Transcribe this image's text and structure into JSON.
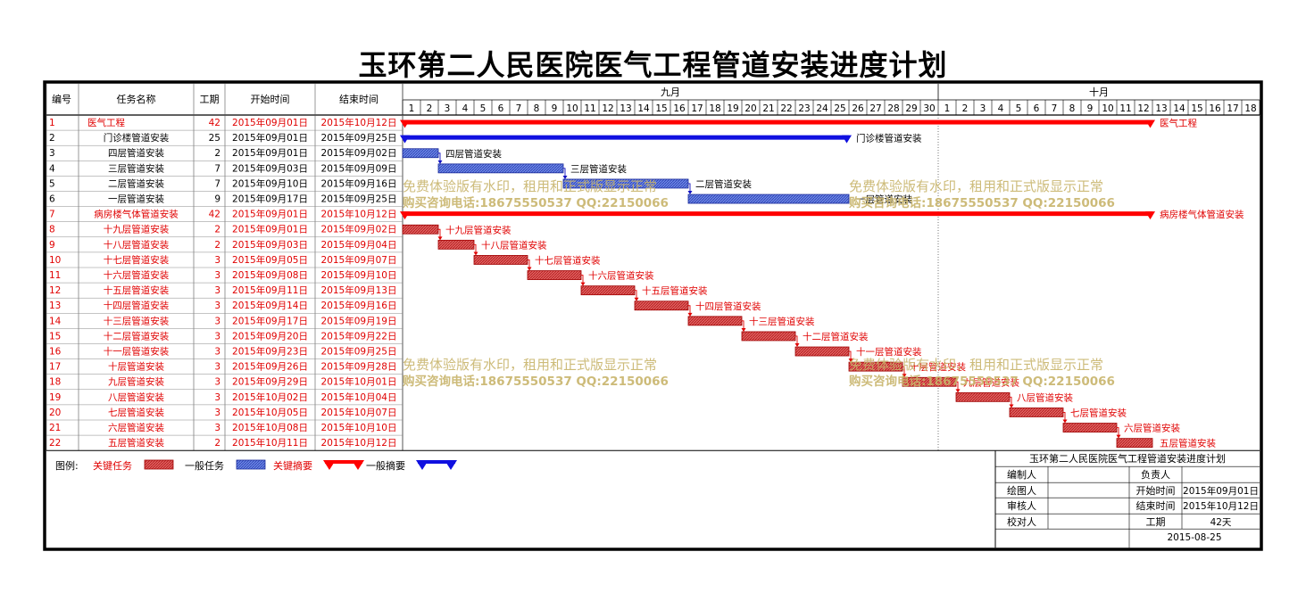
{
  "title": "玉环第二人民医院医气工程管道安装进度计划",
  "headers": {
    "id": "编号",
    "name": "任务名称",
    "dur": "工期",
    "start": "开始时间",
    "end": "结束时间"
  },
  "months": [
    "九月",
    "十月"
  ],
  "days": [
    "1",
    "2",
    "3",
    "4",
    "5",
    "6",
    "7",
    "8",
    "9",
    "10",
    "11",
    "12",
    "13",
    "14",
    "15",
    "16",
    "17",
    "18",
    "19",
    "20",
    "21",
    "22",
    "23",
    "24",
    "25",
    "26",
    "27",
    "28",
    "29",
    "30",
    "1",
    "2",
    "3",
    "4",
    "5",
    "6",
    "7",
    "8",
    "9",
    "10",
    "11",
    "12",
    "13",
    "14",
    "15",
    "16",
    "17",
    "18"
  ],
  "timeline": {
    "start": "2015-09-01",
    "day_count": 48,
    "divider_date": "2015-10-01"
  },
  "colors": {
    "critical": "#ff0000",
    "normal": "#1010e0",
    "critical_bar": "#d83a3a",
    "normal_bar": "#4a6ad8",
    "watermark": "#c8b46a"
  },
  "tasks": [
    {
      "id": "1",
      "name": "医气工程",
      "dur": "42",
      "start": "2015年09月01日",
      "end": "2015年10月12日",
      "s": "2015-09-01",
      "e": "2015-10-12",
      "kind": "summary",
      "critical": true,
      "label": "医气工程"
    },
    {
      "id": "2",
      "name": "门诊楼管道安装",
      "dur": "25",
      "start": "2015年09月01日",
      "end": "2015年09月25日",
      "s": "2015-09-01",
      "e": "2015-09-25",
      "kind": "summary",
      "critical": false,
      "label": "门诊楼管道安装"
    },
    {
      "id": "3",
      "name": "四层管道安装",
      "dur": "2",
      "start": "2015年09月01日",
      "end": "2015年09月02日",
      "s": "2015-09-01",
      "e": "2015-09-02",
      "kind": "task",
      "critical": false,
      "label": "四层管道安装"
    },
    {
      "id": "4",
      "name": "三层管道安装",
      "dur": "7",
      "start": "2015年09月03日",
      "end": "2015年09月09日",
      "s": "2015-09-03",
      "e": "2015-09-09",
      "kind": "task",
      "critical": false,
      "label": "三层管道安装"
    },
    {
      "id": "5",
      "name": "二层管道安装",
      "dur": "7",
      "start": "2015年09月10日",
      "end": "2015年09月16日",
      "s": "2015-09-10",
      "e": "2015-09-16",
      "kind": "task",
      "critical": false,
      "label": "二层管道安装"
    },
    {
      "id": "6",
      "name": "一层管道安装",
      "dur": "9",
      "start": "2015年09月17日",
      "end": "2015年09月25日",
      "s": "2015-09-17",
      "e": "2015-09-25",
      "kind": "task",
      "critical": false,
      "label": "一层管道安装"
    },
    {
      "id": "7",
      "name": "病房楼气体管道安装",
      "dur": "42",
      "start": "2015年09月01日",
      "end": "2015年10月12日",
      "s": "2015-09-01",
      "e": "2015-10-12",
      "kind": "summary",
      "critical": true,
      "label": "病房楼气体管道安装"
    },
    {
      "id": "8",
      "name": "十九层管道安装",
      "dur": "2",
      "start": "2015年09月01日",
      "end": "2015年09月02日",
      "s": "2015-09-01",
      "e": "2015-09-02",
      "kind": "task",
      "critical": true,
      "label": "十九层管道安装"
    },
    {
      "id": "9",
      "name": "十八层管道安装",
      "dur": "2",
      "start": "2015年09月03日",
      "end": "2015年09月04日",
      "s": "2015-09-03",
      "e": "2015-09-04",
      "kind": "task",
      "critical": true,
      "label": "十八层管道安装"
    },
    {
      "id": "10",
      "name": "十七层管道安装",
      "dur": "3",
      "start": "2015年09月05日",
      "end": "2015年09月07日",
      "s": "2015-09-05",
      "e": "2015-09-07",
      "kind": "task",
      "critical": true,
      "label": "十七层管道安装"
    },
    {
      "id": "11",
      "name": "十六层管道安装",
      "dur": "3",
      "start": "2015年09月08日",
      "end": "2015年09月10日",
      "s": "2015-09-08",
      "e": "2015-09-10",
      "kind": "task",
      "critical": true,
      "label": "十六层管道安装"
    },
    {
      "id": "12",
      "name": "十五层管道安装",
      "dur": "3",
      "start": "2015年09月11日",
      "end": "2015年09月13日",
      "s": "2015-09-11",
      "e": "2015-09-13",
      "kind": "task",
      "critical": true,
      "label": "十五层管道安装"
    },
    {
      "id": "13",
      "name": "十四层管道安装",
      "dur": "3",
      "start": "2015年09月14日",
      "end": "2015年09月16日",
      "s": "2015-09-14",
      "e": "2015-09-16",
      "kind": "task",
      "critical": true,
      "label": "十四层管道安装"
    },
    {
      "id": "14",
      "name": "十三层管道安装",
      "dur": "3",
      "start": "2015年09月17日",
      "end": "2015年09月19日",
      "s": "2015-09-17",
      "e": "2015-09-19",
      "kind": "task",
      "critical": true,
      "label": "十三层管道安装"
    },
    {
      "id": "15",
      "name": "十二层管道安装",
      "dur": "3",
      "start": "2015年09月20日",
      "end": "2015年09月22日",
      "s": "2015-09-20",
      "e": "2015-09-22",
      "kind": "task",
      "critical": true,
      "label": "十二层管道安装"
    },
    {
      "id": "16",
      "name": "十一层管道安装",
      "dur": "3",
      "start": "2015年09月23日",
      "end": "2015年09月25日",
      "s": "2015-09-23",
      "e": "2015-09-25",
      "kind": "task",
      "critical": true,
      "label": "十一层管道安装"
    },
    {
      "id": "17",
      "name": "十层管道安装",
      "dur": "3",
      "start": "2015年09月26日",
      "end": "2015年09月28日",
      "s": "2015-09-26",
      "e": "2015-09-28",
      "kind": "task",
      "critical": true,
      "label": "十层管道安装"
    },
    {
      "id": "18",
      "name": "九层管道安装",
      "dur": "3",
      "start": "2015年09月29日",
      "end": "2015年10月01日",
      "s": "2015-09-29",
      "e": "2015-10-01",
      "kind": "task",
      "critical": true,
      "label": "九层管道安装"
    },
    {
      "id": "19",
      "name": "八层管道安装",
      "dur": "3",
      "start": "2015年10月02日",
      "end": "2015年10月04日",
      "s": "2015-10-02",
      "e": "2015-10-04",
      "kind": "task",
      "critical": true,
      "label": "八层管道安装"
    },
    {
      "id": "20",
      "name": "七层管道安装",
      "dur": "3",
      "start": "2015年10月05日",
      "end": "2015年10月07日",
      "s": "2015-10-05",
      "e": "2015-10-07",
      "kind": "task",
      "critical": true,
      "label": "七层管道安装"
    },
    {
      "id": "21",
      "name": "六层管道安装",
      "dur": "3",
      "start": "2015年10月08日",
      "end": "2015年10月10日",
      "s": "2015-10-08",
      "e": "2015-10-10",
      "kind": "task",
      "critical": true,
      "label": "六层管道安装"
    },
    {
      "id": "22",
      "name": "五层管道安装",
      "dur": "2",
      "start": "2015年10月11日",
      "end": "2015年10月12日",
      "s": "2015-10-11",
      "e": "2015-10-12",
      "kind": "task",
      "critical": true,
      "label": "五层管道安装"
    }
  ],
  "watermark": {
    "line1": "免费体验版有水印，租用和正式版显示正常",
    "line2": "购买咨询电话:18675550537 QQ:22150066"
  },
  "legend": {
    "label": "图例:",
    "items": [
      {
        "text": "关键任务",
        "type": "critical-task"
      },
      {
        "text": "一般任务",
        "type": "normal-task"
      },
      {
        "text": "关键摘要",
        "type": "critical-summary"
      },
      {
        "text": "一般摘要",
        "type": "normal-summary"
      }
    ]
  },
  "info": {
    "title": "玉环第二人民医院医气工程管道安装进度计划",
    "editor": "编制人",
    "owner": "负责人",
    "drafter": "绘图人",
    "start_label": "开始时间",
    "start_value": "2015年09月01日",
    "reviewer": "审核人",
    "end_label": "结束时间",
    "end_value": "2015年10月12日",
    "checker": "校对人",
    "dur_label": "工期",
    "dur_value": "42天",
    "date": "2015-08-25"
  }
}
